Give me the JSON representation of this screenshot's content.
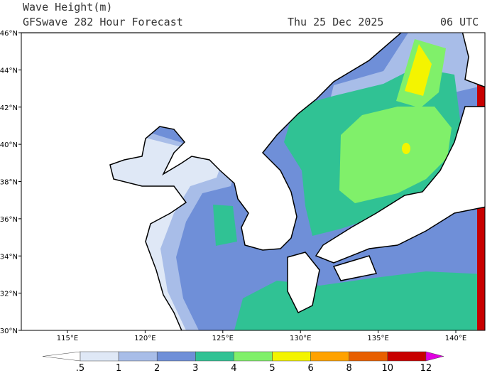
{
  "header": {
    "title": "Wave Height(m)",
    "subtitle": "GFSwave 282 Hour Forecast",
    "date": "Thu 25 Dec 2025",
    "time": "06 UTC"
  },
  "map": {
    "lat_labels": [
      "46°N",
      "44°N",
      "42°N",
      "40°N",
      "38°N",
      "36°N",
      "34°N",
      "32°N",
      "30°N"
    ],
    "lon_labels": [
      "115°E",
      "120°E",
      "125°E",
      "130°E",
      "135°E",
      "140°E"
    ]
  },
  "legend": {
    "labels": [
      ".5",
      "1",
      "2",
      "3",
      "4",
      "5",
      "6",
      "8",
      "10",
      "12"
    ],
    "colors": [
      "#ffffff",
      "#dfe8f6",
      "#a8bde8",
      "#6f8fd8",
      "#30c294",
      "#80f06a",
      "#f4f400",
      "#ffa200",
      "#e85f00",
      "#c80000",
      "#e000e0"
    ]
  }
}
